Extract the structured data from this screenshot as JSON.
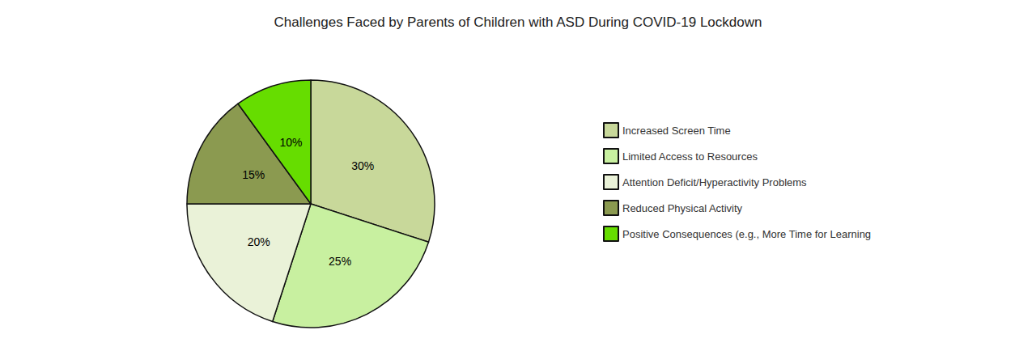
{
  "chart_data": {
    "type": "pie",
    "title": "Challenges Faced by Parents of Children with ASD During COVID-19 Lockdown",
    "categories": [
      "Increased Screen Time",
      "Limited Access to Resources",
      "Attention Deficit/Hyperactivity Problems",
      "Reduced Physical Activity",
      "Positive Consequences (e.g., More Time for Learning"
    ],
    "values": [
      30,
      25,
      20,
      15,
      10
    ],
    "value_labels": [
      "30%",
      "25%",
      "20%",
      "15%",
      "10%"
    ],
    "colors": [
      "#c8d89a",
      "#c8f0a0",
      "#eaf2d8",
      "#8b9a50",
      "#66dd00"
    ],
    "data_labels": true,
    "legend": "right"
  }
}
